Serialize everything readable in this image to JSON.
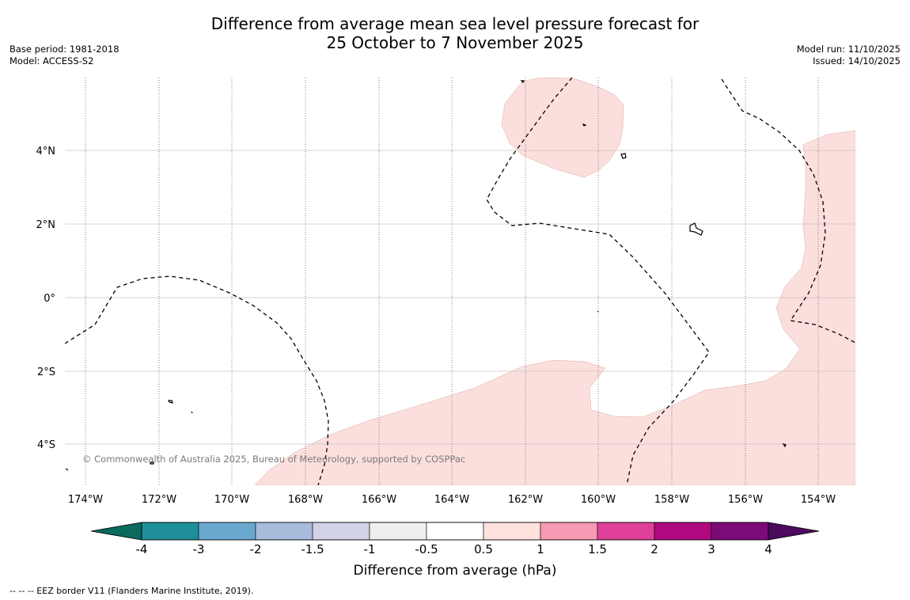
{
  "title": {
    "line1": "Difference from average mean sea level pressure forecast for",
    "line2": "25 October to 7 November 2025"
  },
  "meta": {
    "base_period": "Base period: 1981-2018",
    "model": "Model: ACCESS-S2",
    "model_run": "Model run: 11/10/2025",
    "issued": "Issued: 14/10/2025"
  },
  "map": {
    "copyright": "© Commonwealth of Australia 2025, Bureau of Meteorology, supported by COSPPac",
    "lat_labels": [
      "4°N",
      "2°N",
      "0°",
      "2°S",
      "4°S"
    ],
    "lon_labels": [
      "174°W",
      "172°W",
      "170°W",
      "168°W",
      "166°W",
      "164°W",
      "162°W",
      "160°W",
      "158°W",
      "156°W",
      "154°W"
    ]
  },
  "colorbar": {
    "label": "Difference from average (hPa)",
    "ticks": [
      "-4",
      "-3",
      "-2",
      "-1.5",
      "-1",
      "-0.5",
      "0.5",
      "1",
      "1.5",
      "2",
      "3",
      "4"
    ],
    "colors": {
      "below": "#0a6b5c",
      "bins": [
        "#1f8f9a",
        "#6aa8d0",
        "#a8bcdc",
        "#d2d2e8",
        "#efefef",
        "#ffffff",
        "#fde2de",
        "#f79ab4",
        "#df3f99",
        "#b0087e",
        "#7c0a78"
      ],
      "above": "#4b0a5e"
    },
    "anomaly_fill": "#fbdfdc"
  },
  "footer": {
    "legend_text": "--  --  -- EEZ border V11 (Flanders Marine Institute, 2019)."
  }
}
